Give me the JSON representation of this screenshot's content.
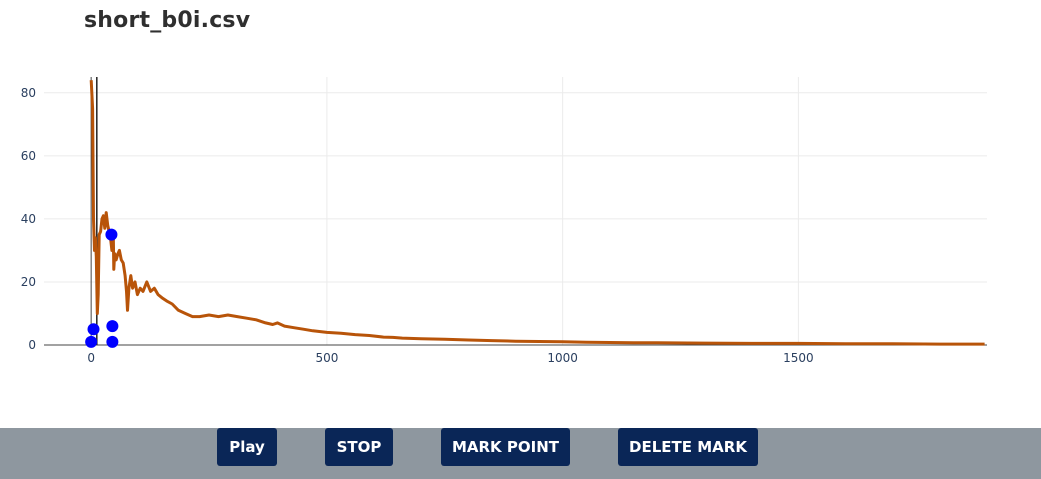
{
  "header": {
    "title": "short_b0i.csv"
  },
  "toolbar": {
    "play_label": "Play",
    "stop_label": "STOP",
    "mark_point_label": "MARK POINT",
    "delete_mark_label": "DELETE MARK"
  },
  "colors": {
    "line": "#b85409",
    "markers": "#0000ff",
    "button_bg": "#0a2657",
    "toolbar_bg": "#8e979f",
    "grid": "#ebebeb"
  },
  "chart_data": {
    "type": "line",
    "title": "",
    "xlabel": "",
    "ylabel": "",
    "xlim": [
      -100,
      1900
    ],
    "ylim": [
      0,
      85
    ],
    "x_ticks": [
      0,
      500,
      1000,
      1500
    ],
    "y_ticks": [
      0,
      20,
      40,
      60,
      80
    ],
    "grid": true,
    "vertical_line_x": 12,
    "series": [
      {
        "values": [
          [
            0,
            84
          ],
          [
            3,
            75
          ],
          [
            5,
            40
          ],
          [
            7,
            30
          ],
          [
            9,
            34
          ],
          [
            11,
            28
          ],
          [
            13,
            10
          ],
          [
            15,
            16
          ],
          [
            17,
            35
          ],
          [
            20,
            36
          ],
          [
            23,
            40
          ],
          [
            26,
            41
          ],
          [
            29,
            37
          ],
          [
            32,
            42
          ],
          [
            35,
            38
          ],
          [
            38,
            36
          ],
          [
            41,
            34
          ],
          [
            44,
            30
          ],
          [
            47,
            35
          ],
          [
            48,
            24
          ],
          [
            50,
            29
          ],
          [
            53,
            27
          ],
          [
            57,
            29
          ],
          [
            60,
            30
          ],
          [
            64,
            27
          ],
          [
            68,
            26
          ],
          [
            72,
            22
          ],
          [
            75,
            17
          ],
          [
            77,
            11
          ],
          [
            80,
            18
          ],
          [
            84,
            22
          ],
          [
            88,
            18
          ],
          [
            93,
            20
          ],
          [
            98,
            16
          ],
          [
            104,
            18
          ],
          [
            110,
            17
          ],
          [
            118,
            20
          ],
          [
            126,
            17
          ],
          [
            134,
            18
          ],
          [
            142,
            16
          ],
          [
            150,
            15
          ],
          [
            160,
            14
          ],
          [
            172,
            13
          ],
          [
            185,
            11
          ],
          [
            200,
            10
          ],
          [
            215,
            9
          ],
          [
            230,
            9
          ],
          [
            250,
            9.5
          ],
          [
            270,
            9
          ],
          [
            290,
            9.5
          ],
          [
            310,
            9
          ],
          [
            330,
            8.5
          ],
          [
            350,
            8
          ],
          [
            370,
            7
          ],
          [
            385,
            6.5
          ],
          [
            395,
            7
          ],
          [
            410,
            6
          ],
          [
            430,
            5.5
          ],
          [
            450,
            5
          ],
          [
            470,
            4.5
          ],
          [
            500,
            4
          ],
          [
            530,
            3.7
          ],
          [
            560,
            3.3
          ],
          [
            590,
            3
          ],
          [
            620,
            2.5
          ],
          [
            640,
            2.4
          ],
          [
            660,
            2.2
          ],
          [
            700,
            2
          ],
          [
            750,
            1.8
          ],
          [
            800,
            1.6
          ],
          [
            850,
            1.4
          ],
          [
            900,
            1.2
          ],
          [
            950,
            1.1
          ],
          [
            1000,
            1
          ],
          [
            1050,
            0.9
          ],
          [
            1100,
            0.8
          ],
          [
            1150,
            0.7
          ],
          [
            1200,
            0.7
          ],
          [
            1300,
            0.6
          ],
          [
            1400,
            0.5
          ],
          [
            1500,
            0.5
          ],
          [
            1600,
            0.4
          ],
          [
            1700,
            0.4
          ],
          [
            1800,
            0.3
          ],
          [
            1895,
            0.3
          ]
        ]
      }
    ],
    "markers": [
      {
        "x": 0,
        "y": 1
      },
      {
        "x": 5,
        "y": 5
      },
      {
        "x": 43,
        "y": 35
      },
      {
        "x": 45,
        "y": 6
      },
      {
        "x": 45,
        "y": 1
      }
    ]
  }
}
